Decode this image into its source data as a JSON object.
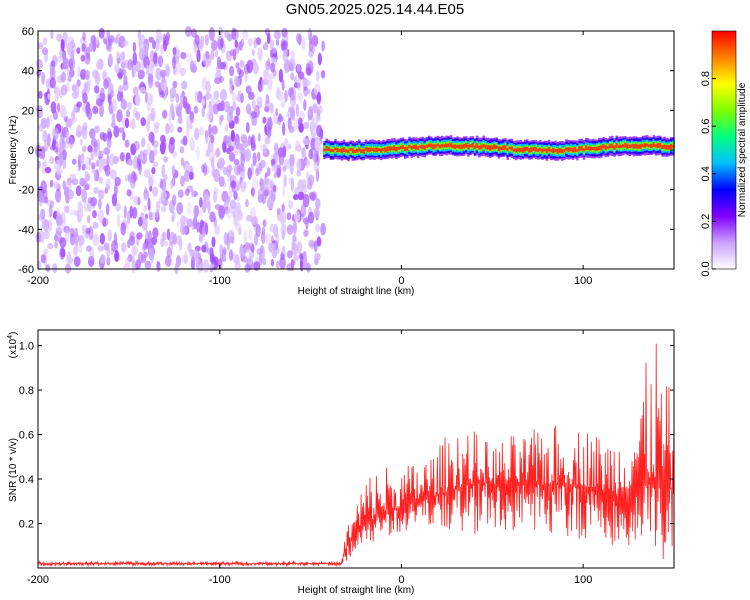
{
  "figure": {
    "title": "GN05.2025.025.14.44.E05"
  },
  "chart_data": [
    {
      "type": "heatmap",
      "description_of_content": "spectrogram",
      "xlabel": "Height of straight line (km)",
      "ylabel": "Frequency (Hz)",
      "xlim": [
        -200,
        150
      ],
      "ylim": [
        -60,
        60
      ],
      "xticks": [
        "-200",
        "-100",
        "0",
        "100"
      ],
      "xtick_values": [
        -200,
        -100,
        0,
        100
      ],
      "yticks": [
        "-60",
        "-40",
        "-20",
        "0",
        "20",
        "40",
        "60"
      ],
      "ytick_values": [
        -60,
        -40,
        -20,
        0,
        20,
        40,
        60
      ],
      "noise_region_x": [
        -200,
        -43
      ],
      "signal_region_x": [
        -43,
        150
      ],
      "signal_frequency_hz": 1,
      "colorbar": {
        "label": "Normalized spectral amplitude",
        "range": [
          0,
          1
        ],
        "ticks": [
          "0.0",
          "0.2",
          "0.4",
          "0.6",
          "0.8"
        ],
        "tick_values": [
          0.0,
          0.2,
          0.4,
          0.6,
          0.8
        ],
        "colormap": [
          "#ffffff",
          "#c9a0ff",
          "#8000ff",
          "#0000ff",
          "#00c0ff",
          "#00ff80",
          "#80ff00",
          "#ffff00",
          "#ff8000",
          "#ff0000"
        ]
      }
    },
    {
      "type": "line",
      "xlabel": "Height of straight line (km)",
      "ylabel": "SNR (10 * v/v)",
      "y_multiplier_label": "(x10",
      "y_multiplier_exp": "4",
      "xlim": [
        -200,
        150
      ],
      "ylim": [
        0,
        1.07
      ],
      "xticks": [
        "-200",
        "-100",
        "0",
        "100"
      ],
      "xtick_values": [
        -200,
        -100,
        0,
        100
      ],
      "yticks": [
        "0.2",
        "0.4",
        "0.6",
        "0.8",
        "1.0"
      ],
      "ytick_values": [
        0.2,
        0.4,
        0.6,
        0.8,
        1.0
      ],
      "series": [
        {
          "color": "#ff2020",
          "x": [
            -200,
            -150,
            -100,
            -50,
            -33,
            -30,
            -20,
            -10,
            0,
            10,
            20,
            30,
            40,
            50,
            60,
            70,
            80,
            90,
            100,
            110,
            120,
            130,
            140,
            150
          ],
          "y": [
            0.02,
            0.02,
            0.02,
            0.02,
            0.02,
            0.1,
            0.2,
            0.24,
            0.28,
            0.3,
            0.33,
            0.36,
            0.38,
            0.38,
            0.37,
            0.38,
            0.37,
            0.38,
            0.37,
            0.35,
            0.33,
            0.38,
            0.4,
            0.35
          ],
          "upper_envelope": [
            0.03,
            0.03,
            0.03,
            0.03,
            0.03,
            0.2,
            0.42,
            0.48,
            0.45,
            0.5,
            0.54,
            0.68,
            0.62,
            0.56,
            0.6,
            0.6,
            0.68,
            0.62,
            0.65,
            0.6,
            0.62,
            0.8,
            1.07,
            0.72
          ],
          "lower_envelope": [
            0.01,
            0.01,
            0.01,
            0.01,
            0.01,
            0.03,
            0.1,
            0.14,
            0.15,
            0.17,
            0.18,
            0.15,
            0.12,
            0.16,
            0.14,
            0.13,
            0.12,
            0.14,
            0.08,
            0.1,
            0.07,
            0.1,
            0.02,
            0.05
          ]
        }
      ]
    }
  ]
}
